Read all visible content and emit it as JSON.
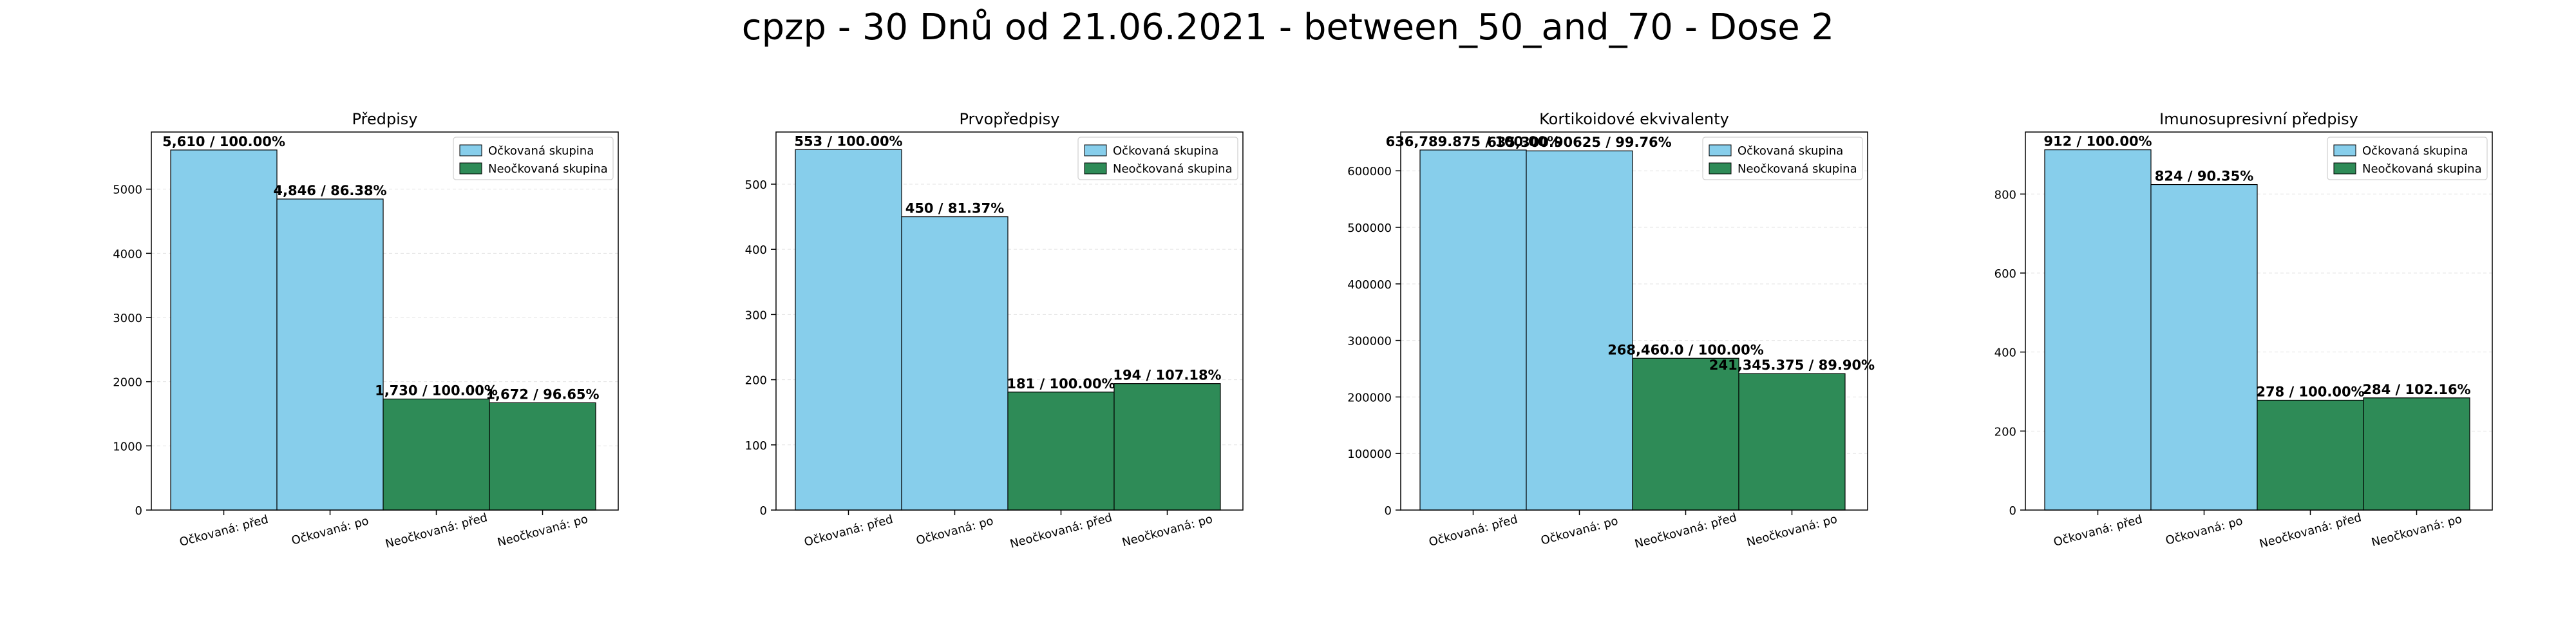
{
  "figure": {
    "title": "cpzp - 30 Dnů od 21.06.2021 - between_50_and_70 - Dose 2"
  },
  "colors": {
    "vaccinated": "#87ceeb",
    "unvaccinated": "#2e8b57",
    "edge": "#000000"
  },
  "legend_labels": [
    "Očkovaná skupina",
    "Neočkovaná skupina"
  ],
  "chart_data": [
    {
      "type": "bar",
      "title": "Předpisy",
      "categories": [
        "Očkovaná: před",
        "Očkovaná: po",
        "Neočkovaná: před",
        "Neočkovaná: po"
      ],
      "values": [
        5610,
        4846,
        1730,
        1672
      ],
      "data_labels": [
        "5,610 / 100.00%",
        "4,846 / 86.38%",
        "1,730 / 100.00%",
        "1,672 / 96.65%"
      ],
      "groups": [
        "vaccinated",
        "vaccinated",
        "unvaccinated",
        "unvaccinated"
      ],
      "ylim": [
        0,
        5890
      ],
      "yticks": [
        0,
        1000,
        2000,
        3000,
        4000,
        5000
      ],
      "legend": "top-right",
      "grid": "y"
    },
    {
      "type": "bar",
      "title": "Prvopředpisy",
      "categories": [
        "Očkovaná: před",
        "Očkovaná: po",
        "Neočkovaná: před",
        "Neočkovaná: po"
      ],
      "values": [
        553,
        450,
        181,
        194
      ],
      "data_labels": [
        "553 / 100.00%",
        "450 / 81.37%",
        "181 / 100.00%",
        "194 / 107.18%"
      ],
      "groups": [
        "vaccinated",
        "vaccinated",
        "unvaccinated",
        "unvaccinated"
      ],
      "ylim": [
        0,
        580
      ],
      "yticks": [
        0,
        100,
        200,
        300,
        400,
        500
      ],
      "legend": "top-right",
      "grid": "y"
    },
    {
      "type": "bar",
      "title": "Kortikoidové ekvivalenty",
      "categories": [
        "Očkovaná: před",
        "Očkovaná: po",
        "Neočkovaná: před",
        "Neočkovaná: po"
      ],
      "values": [
        636789.875,
        635300.90625,
        268460.0,
        241345.375
      ],
      "data_labels": [
        "636,789.875 / 100.00%",
        "635,300.90625 / 99.76%",
        "268,460.0 / 100.00%",
        "241,345.375 / 89.90%"
      ],
      "groups": [
        "vaccinated",
        "vaccinated",
        "unvaccinated",
        "unvaccinated"
      ],
      "ylim": [
        0,
        668600
      ],
      "yticks": [
        0,
        100000,
        200000,
        300000,
        400000,
        500000,
        600000
      ],
      "legend": "top-right",
      "grid": "y"
    },
    {
      "type": "bar",
      "title": "Imunosupresivní předpisy",
      "categories": [
        "Očkovaná: před",
        "Očkovaná: po",
        "Neočkovaná: před",
        "Neočkovaná: po"
      ],
      "values": [
        912,
        824,
        278,
        284
      ],
      "data_labels": [
        "912 / 100.00%",
        "824 / 90.35%",
        "278 / 100.00%",
        "284 / 102.16%"
      ],
      "groups": [
        "vaccinated",
        "vaccinated",
        "unvaccinated",
        "unvaccinated"
      ],
      "ylim": [
        0,
        957
      ],
      "yticks": [
        0,
        200,
        400,
        600,
        800
      ],
      "legend": "top-right",
      "grid": "y"
    }
  ]
}
